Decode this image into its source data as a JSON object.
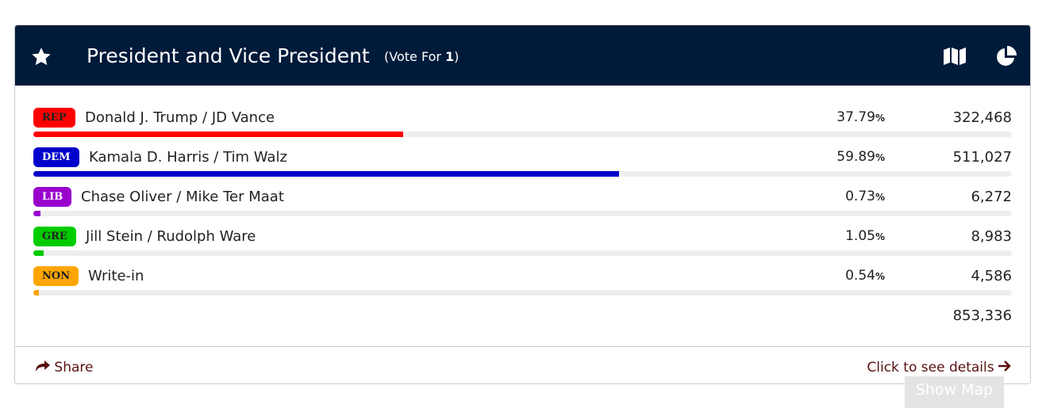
{
  "header": {
    "title": "President and Vice President",
    "vote_for": {
      "prefix": "(Vote For",
      "count": "1",
      "suffix": ")"
    }
  },
  "percent_sign": "%",
  "percent_scale": [
    0,
    100
  ],
  "candidates": [
    {
      "party": "REP",
      "party_color": "#ff0000",
      "party_text_color": "#222222",
      "name": "Donald J. Trump / JD Vance",
      "percent": 37.79,
      "votes": "322,468"
    },
    {
      "party": "DEM",
      "party_color": "#0000cc",
      "party_text_color": "#ffffff",
      "name": "Kamala D. Harris / Tim Walz",
      "percent": 59.89,
      "votes": "511,027"
    },
    {
      "party": "LIB",
      "party_color": "#9900cc",
      "party_text_color": "#ffffff",
      "name": "Chase Oliver / Mike Ter Maat",
      "percent": 0.73,
      "votes": "6,272"
    },
    {
      "party": "GRE",
      "party_color": "#00cc00",
      "party_text_color": "#222222",
      "name": "Jill Stein / Rudolph Ware",
      "percent": 1.05,
      "votes": "8,983"
    },
    {
      "party": "NON",
      "party_color": "#ffa500",
      "party_text_color": "#222222",
      "name": "Write-in",
      "percent": 0.54,
      "votes": "4,586"
    }
  ],
  "total_votes": "853,336",
  "footer": {
    "share": "Share",
    "details": "Click to see details"
  },
  "show_map": "Show Map"
}
